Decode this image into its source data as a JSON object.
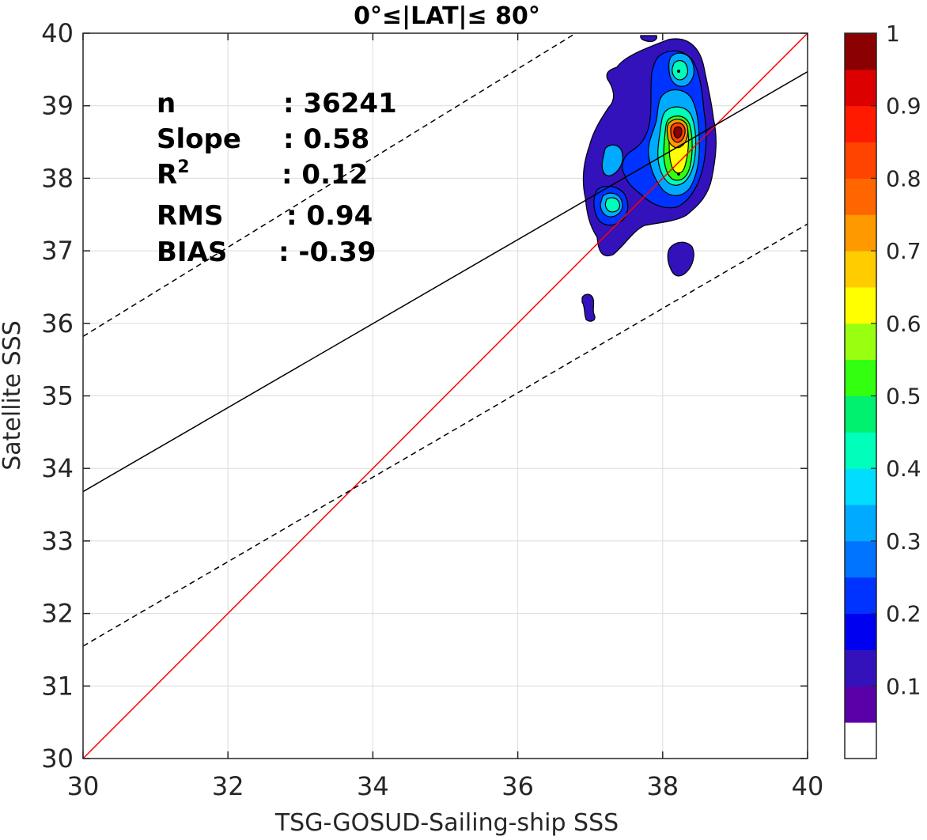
{
  "chart_data": {
    "type": "contour-scatter",
    "title": "0°≤|LAT|≤ 80°",
    "xlabel": "TSG-GOSUD-Sailing-ship SSS",
    "ylabel": "Satellite SSS",
    "xlim": [
      30,
      40
    ],
    "ylim": [
      30,
      40
    ],
    "xticks": [
      "30",
      "32",
      "34",
      "36",
      "38",
      "40"
    ],
    "yticks": [
      "30",
      "31",
      "32",
      "33",
      "34",
      "35",
      "36",
      "37",
      "38",
      "39",
      "40"
    ],
    "grid": true,
    "stats": [
      {
        "key": "n",
        "value": ": 36241"
      },
      {
        "key": "Slope",
        "value": ": 0.58"
      },
      {
        "key": "R",
        "sup": "2",
        "value": ": 0.12"
      },
      {
        "key": "RMS",
        "value": ": 0.94"
      },
      {
        "key": "BIAS",
        "value": ": -0.39"
      }
    ],
    "lines": {
      "identity": {
        "color": "#ff0000",
        "x": [
          30,
          40
        ],
        "y": [
          30,
          40
        ]
      },
      "fit": {
        "color": "#000000",
        "style": "solid",
        "x": [
          30,
          40
        ],
        "y": [
          33.68,
          39.47
        ]
      },
      "upper_bound": {
        "color": "#000000",
        "style": "dashed",
        "x": [
          30,
          36.8
        ],
        "y": [
          35.82,
          40.0
        ]
      },
      "lower_bound": {
        "color": "#000000",
        "style": "dashed",
        "x": [
          30,
          40
        ],
        "y": [
          31.55,
          37.37
        ]
      }
    },
    "density_peaks": [
      {
        "x": 38.23,
        "y": 38.62,
        "value": 0.95
      },
      {
        "x": 38.25,
        "y": 38.1,
        "value": 0.65
      },
      {
        "x": 38.25,
        "y": 39.47,
        "value": 0.4
      },
      {
        "x": 37.33,
        "y": 37.65,
        "value": 0.45
      }
    ],
    "colorbar": {
      "range": [
        0,
        1
      ],
      "ticks": [
        "0.1",
        "0.2",
        "0.3",
        "0.4",
        "0.5",
        "0.6",
        "0.7",
        "0.8",
        "0.9",
        "1"
      ],
      "colors": [
        "#ffffff",
        "#5a00a8",
        "#3311bb",
        "#0000f0",
        "#0033ff",
        "#0073ff",
        "#00aaff",
        "#00ddff",
        "#00ffbb",
        "#00f070",
        "#33ff11",
        "#99ff11",
        "#ffff00",
        "#ffcc00",
        "#ff9900",
        "#ff6600",
        "#ff4400",
        "#ff1a00",
        "#dd0000",
        "#8b0000"
      ]
    }
  }
}
